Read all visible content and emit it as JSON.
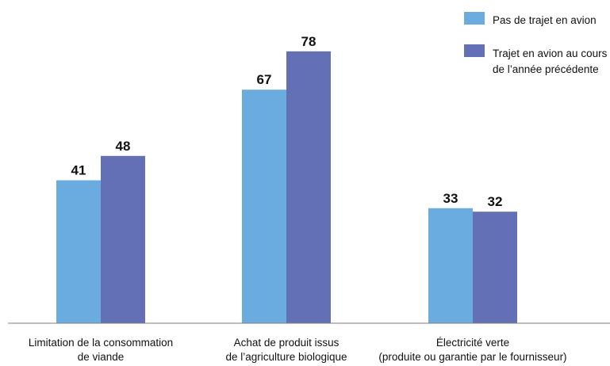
{
  "chart_data": {
    "type": "bar",
    "categories": [
      [
        "Limitation de la consommation",
        "de viande"
      ],
      [
        "Achat de produit issus",
        "de l’agriculture biologique"
      ],
      [
        "Électricité verte",
        "(produite ou garantie par le fournisseur)"
      ]
    ],
    "series": [
      {
        "name": "Pas de trajet en avion",
        "values": [
          41,
          67,
          33
        ],
        "color": "#6aace0"
      },
      {
        "name": "Trajet en avion au cours de l’année précédente",
        "values": [
          48,
          78,
          32
        ],
        "color": "#6470b6"
      }
    ],
    "legend": {
      "placement": "top-right",
      "entries": [
        [
          "Pas de trajet en avion"
        ],
        [
          "Trajet en avion au cours",
          "de l’année précédente"
        ]
      ]
    },
    "ylim": [
      0,
      80
    ],
    "grid": false,
    "show_value_labels": true,
    "title": "",
    "xlabel": "",
    "ylabel": ""
  }
}
